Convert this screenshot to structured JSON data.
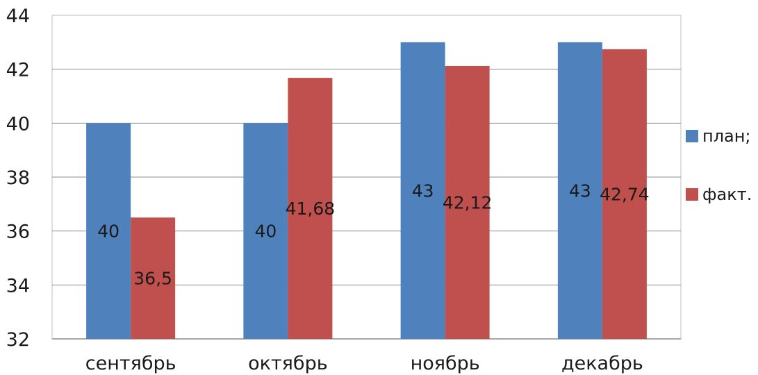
{
  "chart_data": {
    "type": "bar",
    "title": "",
    "xlabel": "",
    "ylabel": "",
    "categories": [
      "сентябрь",
      "октябрь",
      "ноябрь",
      "декабрь"
    ],
    "series": [
      {
        "name": "план;",
        "values": [
          40,
          40,
          43,
          43
        ],
        "labels": [
          "40",
          "40",
          "43",
          "43"
        ],
        "color": "#4f81bd"
      },
      {
        "name": "факт.",
        "values": [
          36.5,
          41.68,
          42.12,
          42.74
        ],
        "labels": [
          "36,5",
          "41,68",
          "42,12",
          "42,74"
        ],
        "color": "#c0504d"
      }
    ],
    "ylim": [
      32,
      44
    ],
    "yticks": [
      "32",
      "34",
      "36",
      "38",
      "40",
      "42",
      "44"
    ],
    "grid": true,
    "legend_position": "right"
  }
}
